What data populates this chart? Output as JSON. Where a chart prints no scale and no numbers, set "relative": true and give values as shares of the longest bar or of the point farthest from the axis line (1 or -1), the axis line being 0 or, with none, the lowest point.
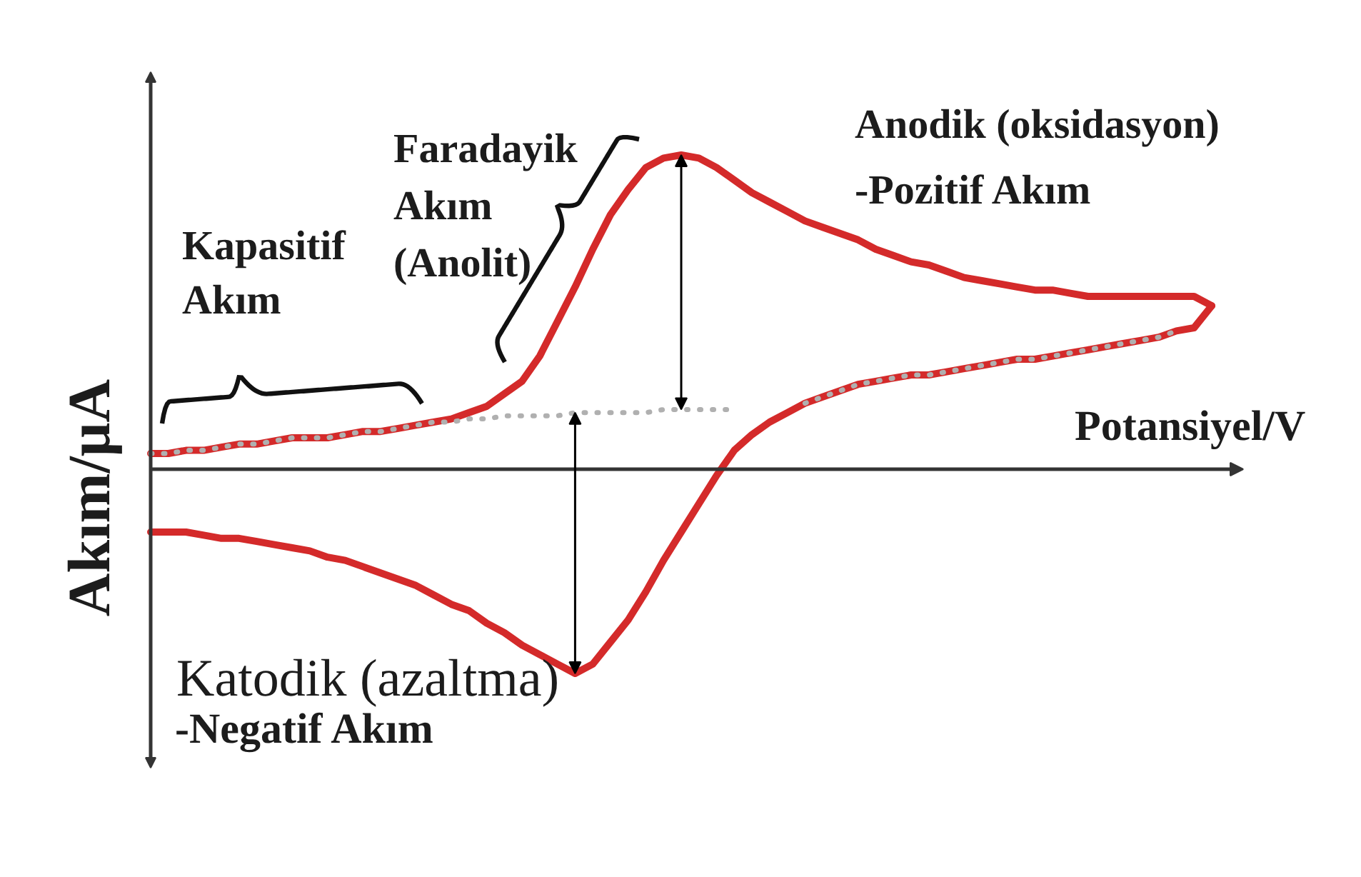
{
  "chart_data": {
    "type": "line",
    "relative": true,
    "xlabel": "Potansiyel/V",
    "ylabel": "Akım/μA",
    "categories": [
      null,
      null,
      null,
      null,
      null,
      null,
      null,
      null,
      null,
      null,
      null,
      null,
      null,
      null,
      null,
      null,
      null,
      null,
      null,
      null,
      null,
      null,
      null,
      null,
      null,
      null,
      null,
      null,
      null,
      null,
      null,
      null,
      null,
      null,
      null,
      null,
      null,
      null,
      null,
      null,
      null,
      null,
      null,
      null,
      null,
      null,
      null,
      null,
      null,
      null,
      null,
      null,
      null,
      null,
      null,
      null,
      null,
      null,
      null,
      null,
      null
    ],
    "series": [
      {
        "color": "#d42a2a",
        "values": [
          0.05,
          0.05,
          0.06,
          0.06,
          0.07,
          0.08,
          0.08,
          0.09,
          0.1,
          0.1,
          0.1,
          0.11,
          0.12,
          0.12,
          0.13,
          0.14,
          0.15,
          0.16,
          0.18,
          0.2,
          0.24,
          0.28,
          0.36,
          0.47,
          0.58,
          0.7,
          0.81,
          0.89,
          0.96,
          0.99,
          1.0,
          0.99,
          0.96,
          0.92,
          0.88,
          0.85,
          0.82,
          0.79,
          0.77,
          0.75,
          0.73,
          0.7,
          0.68,
          0.66,
          0.65,
          0.63,
          0.61,
          0.6,
          0.59,
          0.58,
          0.57,
          0.57,
          0.56,
          0.55,
          0.55,
          0.55,
          0.55,
          0.55,
          0.55,
          0.55,
          0.52
        ]
      },
      {
        "color": "#d42a2a",
        "values": [
          -0.2,
          -0.2,
          -0.2,
          -0.21,
          -0.22,
          -0.22,
          -0.23,
          -0.24,
          -0.25,
          -0.26,
          -0.28,
          -0.29,
          -0.31,
          -0.33,
          -0.35,
          -0.37,
          -0.4,
          -0.43,
          -0.45,
          -0.49,
          -0.52,
          -0.56,
          -0.59,
          -0.62,
          -0.65,
          -0.62,
          -0.55,
          -0.48,
          -0.39,
          -0.29,
          -0.2,
          -0.11,
          -0.02,
          0.06,
          0.11,
          0.15,
          0.18,
          0.21,
          0.23,
          0.25,
          0.27,
          0.28,
          0.29,
          0.3,
          0.3,
          0.31,
          0.32,
          0.33,
          0.34,
          0.35,
          0.35,
          0.36,
          0.37,
          0.38,
          0.39,
          0.4,
          0.41,
          0.42,
          0.44,
          0.45,
          0.52
        ]
      },
      {
        "color": "#b0b0b0",
        "line_style": "dotted",
        "values": [
          0.05,
          0.05,
          0.06,
          0.06,
          0.07,
          0.08,
          0.08,
          0.09,
          0.1,
          0.1,
          0.1,
          0.11,
          0.12,
          0.12,
          0.13,
          0.14,
          0.15,
          0.15,
          0.16,
          0.16,
          0.17,
          0.17,
          0.17,
          0.17,
          0.18,
          0.18,
          0.18,
          0.18,
          0.18,
          0.19,
          0.19,
          0.19,
          0.19,
          0.19,
          null,
          null,
          null,
          0.21,
          0.23,
          0.25,
          0.27,
          0.28,
          0.29,
          0.3,
          0.3,
          0.31,
          0.32,
          0.33,
          0.34,
          0.35,
          0.35,
          0.36,
          0.37,
          0.38,
          0.39,
          0.4,
          0.41,
          0.42,
          0.44,
          null,
          null
        ]
      }
    ],
    "annotations": [
      "Kapasitif Akım",
      "Faradayik Akım (Anolit)",
      "Anodik (oksidasyon)",
      "-Pozitif Akım",
      "Katodik (azaltma)",
      "-Negatif Akım"
    ]
  }
}
